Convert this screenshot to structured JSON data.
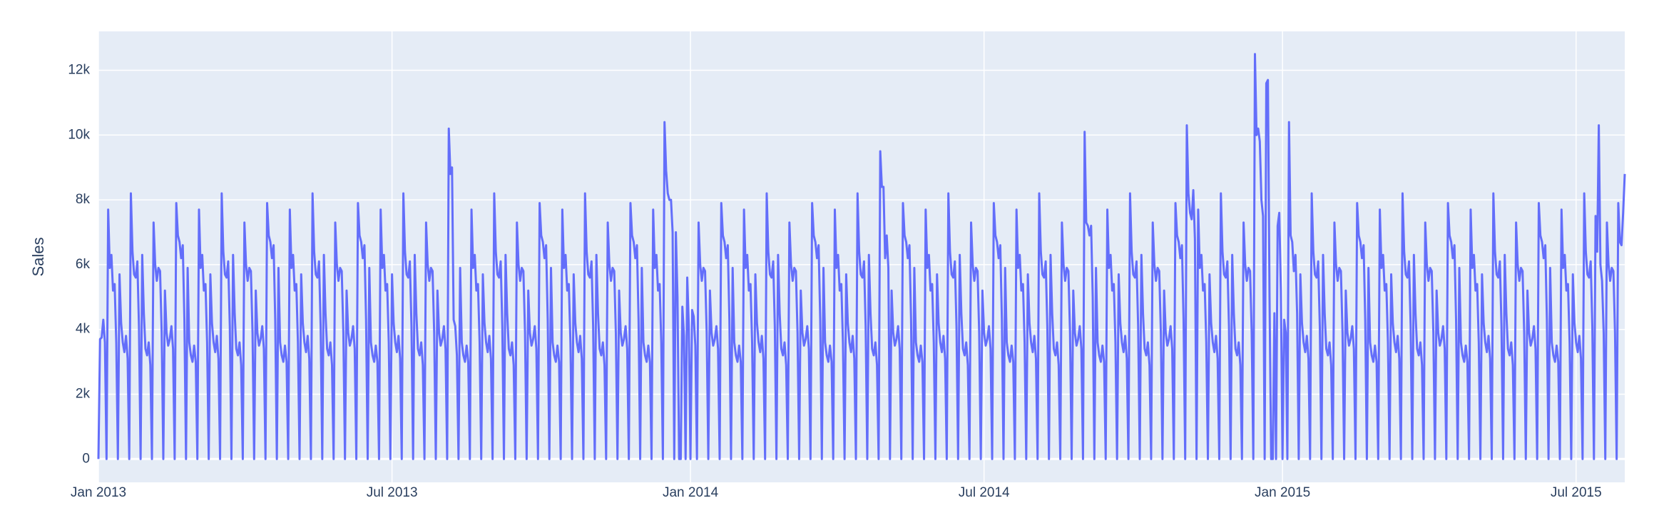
{
  "chart_data": {
    "type": "line",
    "y_title": "Sales",
    "color": "#636efa",
    "grid": true,
    "xlim": [
      0,
      941
    ],
    "xticks": [
      {
        "value": 0,
        "label": "Jan 2013"
      },
      {
        "value": 181,
        "label": "Jul 2013"
      },
      {
        "value": 365,
        "label": "Jan 2014"
      },
      {
        "value": 546,
        "label": "Jul 2014"
      },
      {
        "value": 730,
        "label": "Jan 2015"
      },
      {
        "value": 911,
        "label": "Jul 2015"
      }
    ],
    "ylim": [
      -720,
      13200
    ],
    "yticks": [
      0,
      {
        "value": 2000,
        "label": "2k"
      },
      {
        "value": 4000,
        "label": "4k"
      },
      {
        "value": 6000,
        "label": "6k"
      },
      {
        "value": 8000,
        "label": "8k"
      },
      {
        "value": 10000,
        "label": "10k"
      },
      {
        "value": 12000,
        "label": "12k"
      }
    ],
    "values": [
      0,
      3700,
      3750,
      4300,
      3600,
      0,
      7700,
      5900,
      6300,
      5200,
      5400,
      3600,
      0,
      5700,
      4200,
      3600,
      3300,
      3800,
      3100,
      0,
      8200,
      6400,
      5700,
      5600,
      6100,
      4100,
      0,
      6300,
      4500,
      3400,
      3200,
      3600,
      2900,
      0,
      7300,
      6000,
      5500,
      5900,
      5800,
      3900,
      0,
      5200,
      3900,
      3500,
      3700,
      4100,
      3400,
      0,
      7900,
      6900,
      6700,
      6200,
      6600,
      4300,
      0,
      5900,
      3600,
      3200,
      3000,
      3500,
      3000,
      0,
      7700,
      5900,
      6300,
      5200,
      5400,
      3600,
      0,
      5700,
      4200,
      3600,
      3300,
      3800,
      3100,
      0,
      8200,
      6400,
      5700,
      5600,
      6100,
      4100,
      0,
      6300,
      4500,
      3400,
      3200,
      3600,
      2900,
      0,
      7300,
      6000,
      5500,
      5900,
      5800,
      3900,
      0,
      5200,
      3900,
      3500,
      3700,
      4100,
      3400,
      0,
      7900,
      6900,
      6700,
      6200,
      6600,
      4300,
      0,
      5900,
      3600,
      3200,
      3000,
      3500,
      3000,
      0,
      7700,
      5900,
      6300,
      5200,
      5400,
      3600,
      0,
      5700,
      4200,
      3600,
      3300,
      3800,
      3100,
      0,
      8200,
      6400,
      5700,
      5600,
      6100,
      4100,
      0,
      6300,
      4500,
      3400,
      3200,
      3600,
      2900,
      0,
      7300,
      6000,
      5500,
      5900,
      5800,
      3900,
      0,
      5200,
      3900,
      3500,
      3700,
      4100,
      3400,
      0,
      7900,
      6900,
      6700,
      6200,
      6600,
      4300,
      0,
      5900,
      3600,
      3200,
      3000,
      3500,
      3000,
      0,
      7700,
      5900,
      6300,
      5200,
      5400,
      3600,
      0,
      5700,
      4200,
      3600,
      3300,
      3800,
      3100,
      0,
      8200,
      6400,
      5700,
      5600,
      6100,
      4100,
      0,
      6300,
      4500,
      3400,
      3200,
      3600,
      2900,
      0,
      7300,
      6000,
      5500,
      5900,
      5800,
      3900,
      0,
      5200,
      3900,
      3500,
      3700,
      4100,
      3400,
      0,
      10200,
      8800,
      9000,
      4300,
      4100,
      3200,
      0,
      5900,
      3600,
      3200,
      3000,
      3500,
      3000,
      0,
      7700,
      5900,
      6300,
      5200,
      5400,
      3600,
      0,
      5700,
      4200,
      3600,
      3300,
      3800,
      3100,
      0,
      8200,
      6400,
      5700,
      5600,
      6100,
      4100,
      0,
      6300,
      4500,
      3400,
      3200,
      3600,
      2900,
      0,
      7300,
      6000,
      5500,
      5900,
      5800,
      3900,
      0,
      5200,
      3900,
      3500,
      3700,
      4100,
      3400,
      0,
      7900,
      6900,
      6700,
      6200,
      6600,
      4300,
      0,
      5900,
      3600,
      3200,
      3000,
      3500,
      3000,
      0,
      7700,
      5900,
      6300,
      5200,
      5400,
      3600,
      0,
      5700,
      4200,
      3600,
      3300,
      3800,
      3100,
      0,
      8200,
      6400,
      5700,
      5600,
      6100,
      4100,
      0,
      6300,
      4500,
      3400,
      3200,
      3600,
      2900,
      0,
      7300,
      6000,
      5500,
      5900,
      5800,
      3900,
      0,
      5200,
      3900,
      3500,
      3700,
      4100,
      3400,
      0,
      7900,
      6900,
      6700,
      6200,
      6600,
      4300,
      0,
      5900,
      3600,
      3200,
      3000,
      3500,
      3000,
      0,
      7700,
      5900,
      6300,
      5200,
      5400,
      3600,
      0,
      10400,
      8900,
      8200,
      8000,
      8000,
      7000,
      0,
      7000,
      5000,
      0,
      0,
      4700,
      3800,
      0,
      5600,
      4100,
      0,
      4600,
      4400,
      3500,
      0,
      7300,
      6000,
      5500,
      5900,
      5800,
      3900,
      0,
      5200,
      3900,
      3500,
      3700,
      4100,
      3400,
      0,
      7900,
      6900,
      6700,
      6200,
      6600,
      4300,
      0,
      5900,
      3600,
      3200,
      3000,
      3500,
      3000,
      0,
      7700,
      5900,
      6300,
      5200,
      5400,
      3600,
      0,
      5700,
      4200,
      3600,
      3300,
      3800,
      3100,
      0,
      8200,
      6400,
      5700,
      5600,
      6100,
      4100,
      0,
      6300,
      4500,
      3400,
      3200,
      3600,
      2900,
      0,
      7300,
      6000,
      5500,
      5900,
      5800,
      3900,
      0,
      5200,
      3900,
      3500,
      3700,
      4100,
      3400,
      0,
      7900,
      6900,
      6700,
      6200,
      6600,
      4300,
      0,
      5900,
      3600,
      3200,
      3000,
      3500,
      3000,
      0,
      7700,
      5900,
      6300,
      5200,
      5400,
      3600,
      0,
      5700,
      4200,
      3600,
      3300,
      3800,
      3100,
      0,
      8200,
      6400,
      5700,
      5600,
      6100,
      4100,
      0,
      6300,
      4500,
      3400,
      3200,
      3600,
      2900,
      0,
      9500,
      8400,
      8400,
      6200,
      6900,
      5900,
      0,
      5200,
      3900,
      3500,
      3700,
      4100,
      3400,
      0,
      7900,
      6900,
      6700,
      6200,
      6600,
      4300,
      0,
      5900,
      3600,
      3200,
      3000,
      3500,
      3000,
      0,
      7700,
      5900,
      6300,
      5200,
      5400,
      3600,
      0,
      5700,
      4200,
      3600,
      3300,
      3800,
      3100,
      0,
      8200,
      6400,
      5700,
      5600,
      6100,
      4100,
      0,
      6300,
      4500,
      3400,
      3200,
      3600,
      2900,
      0,
      7300,
      6000,
      5500,
      5900,
      5800,
      3900,
      0,
      5200,
      3900,
      3500,
      3700,
      4100,
      3400,
      0,
      7900,
      6900,
      6700,
      6200,
      6600,
      4300,
      0,
      5900,
      3600,
      3200,
      3000,
      3500,
      3000,
      0,
      7700,
      5900,
      6300,
      5200,
      5400,
      3600,
      0,
      5700,
      4200,
      3600,
      3300,
      3800,
      3100,
      0,
      8200,
      6400,
      5700,
      5600,
      6100,
      4100,
      0,
      6300,
      4500,
      3400,
      3200,
      3600,
      2900,
      0,
      7300,
      6000,
      5500,
      5900,
      5800,
      3900,
      0,
      5200,
      3900,
      3500,
      3700,
      4100,
      3400,
      0,
      10100,
      7300,
      7200,
      6900,
      7200,
      5000,
      0,
      5900,
      3600,
      3200,
      3000,
      3500,
      3000,
      0,
      7700,
      5900,
      6300,
      5200,
      5400,
      3600,
      0,
      5700,
      4200,
      3600,
      3300,
      3800,
      3100,
      0,
      8200,
      6400,
      5700,
      5600,
      6100,
      4100,
      0,
      6300,
      4500,
      3400,
      3200,
      3600,
      2900,
      0,
      7300,
      6000,
      5500,
      5900,
      5800,
      3900,
      0,
      5200,
      3900,
      3500,
      3700,
      4100,
      3400,
      0,
      7900,
      6900,
      6700,
      6200,
      6600,
      4300,
      0,
      10300,
      8200,
      7600,
      7400,
      8300,
      6800,
      0,
      7700,
      5900,
      6300,
      5200,
      5400,
      3600,
      0,
      5700,
      4200,
      3600,
      3300,
      3800,
      3100,
      0,
      8200,
      6400,
      5700,
      5600,
      6100,
      4100,
      0,
      6300,
      4500,
      3400,
      3200,
      3600,
      2900,
      0,
      7300,
      6000,
      5500,
      5900,
      5800,
      3900,
      0,
      12500,
      10000,
      10200,
      9800,
      8000,
      7500,
      0,
      11600,
      11700,
      5000,
      0,
      0,
      4500,
      0,
      7200,
      7600,
      5200,
      0,
      4300,
      3900,
      0,
      10400,
      6900,
      6700,
      5800,
      6300,
      4500,
      0,
      5700,
      4200,
      3600,
      3300,
      3800,
      3100,
      0,
      8200,
      6400,
      5700,
      5600,
      6100,
      4100,
      0,
      6300,
      4500,
      3400,
      3200,
      3600,
      2900,
      0,
      7300,
      6000,
      5500,
      5900,
      5800,
      3900,
      0,
      5200,
      3900,
      3500,
      3700,
      4100,
      3400,
      0,
      7900,
      6900,
      6700,
      6200,
      6600,
      4300,
      0,
      5900,
      3600,
      3200,
      3000,
      3500,
      3000,
      0,
      7700,
      5900,
      6300,
      5200,
      5400,
      3600,
      0,
      5700,
      4200,
      3600,
      3300,
      3800,
      3100,
      0,
      8200,
      6400,
      5700,
      5600,
      6100,
      4100,
      0,
      6300,
      4500,
      3400,
      3200,
      3600,
      2900,
      0,
      7300,
      6000,
      5500,
      5900,
      5800,
      3900,
      0,
      5200,
      3900,
      3500,
      3700,
      4100,
      3400,
      0,
      7900,
      6900,
      6700,
      6200,
      6600,
      4300,
      0,
      5900,
      3600,
      3200,
      3000,
      3500,
      3000,
      0,
      7700,
      5900,
      6300,
      5200,
      5400,
      3600,
      0,
      5700,
      4200,
      3600,
      3300,
      3800,
      3100,
      0,
      8200,
      6400,
      5700,
      5600,
      6100,
      4100,
      0,
      6300,
      4500,
      3400,
      3200,
      3600,
      2900,
      0,
      7300,
      6000,
      5500,
      5900,
      5800,
      3900,
      0,
      5200,
      3900,
      3500,
      3700,
      4100,
      3400,
      0,
      7900,
      6900,
      6700,
      6200,
      6600,
      4300,
      0,
      5900,
      3600,
      3200,
      3000,
      3500,
      3000,
      0,
      7700,
      5900,
      6300,
      5200,
      5400,
      3600,
      0,
      5700,
      4200,
      3600,
      3300,
      3800,
      3100,
      0,
      8200,
      6400,
      5700,
      5600,
      6100,
      4100,
      0,
      7500,
      6400,
      10300,
      6000,
      5500,
      3900,
      0,
      7300,
      6000,
      5500,
      5900,
      5800,
      3900,
      0,
      7900,
      6700,
      6600,
      7600,
      8800
    ]
  }
}
